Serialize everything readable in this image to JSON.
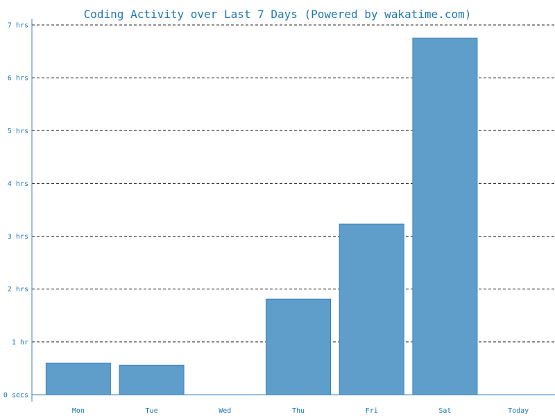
{
  "chart_data": {
    "type": "bar",
    "title": "Coding Activity over Last 7 Days (Powered by wakatime.com)",
    "xlabel": "",
    "ylabel": "",
    "categories": [
      "Mon",
      "Tue",
      "Wed",
      "Thu",
      "Fri",
      "Sat",
      "Today"
    ],
    "values_hours": [
      0.6,
      0.56,
      0,
      1.81,
      3.23,
      6.75,
      0
    ],
    "ylim_hours": [
      0,
      7
    ],
    "y_ticks": [
      {
        "value": 0,
        "label": "0 secs"
      },
      {
        "value": 1,
        "label": "1 hr"
      },
      {
        "value": 2,
        "label": "2 hrs"
      },
      {
        "value": 3,
        "label": "3 hrs"
      },
      {
        "value": 4,
        "label": "4 hrs"
      },
      {
        "value": 5,
        "label": "5 hrs"
      },
      {
        "value": 6,
        "label": "6 hrs"
      },
      {
        "value": 7,
        "label": "7 hrs"
      }
    ],
    "grid": true,
    "grid_style": "dashed",
    "legend": "none"
  },
  "colors": {
    "bar_fill": "#5f9ecb",
    "bar_stroke": "#3a81b8",
    "axis": "#3a81b8",
    "text": "#1f77b4",
    "grid": "#222222"
  }
}
